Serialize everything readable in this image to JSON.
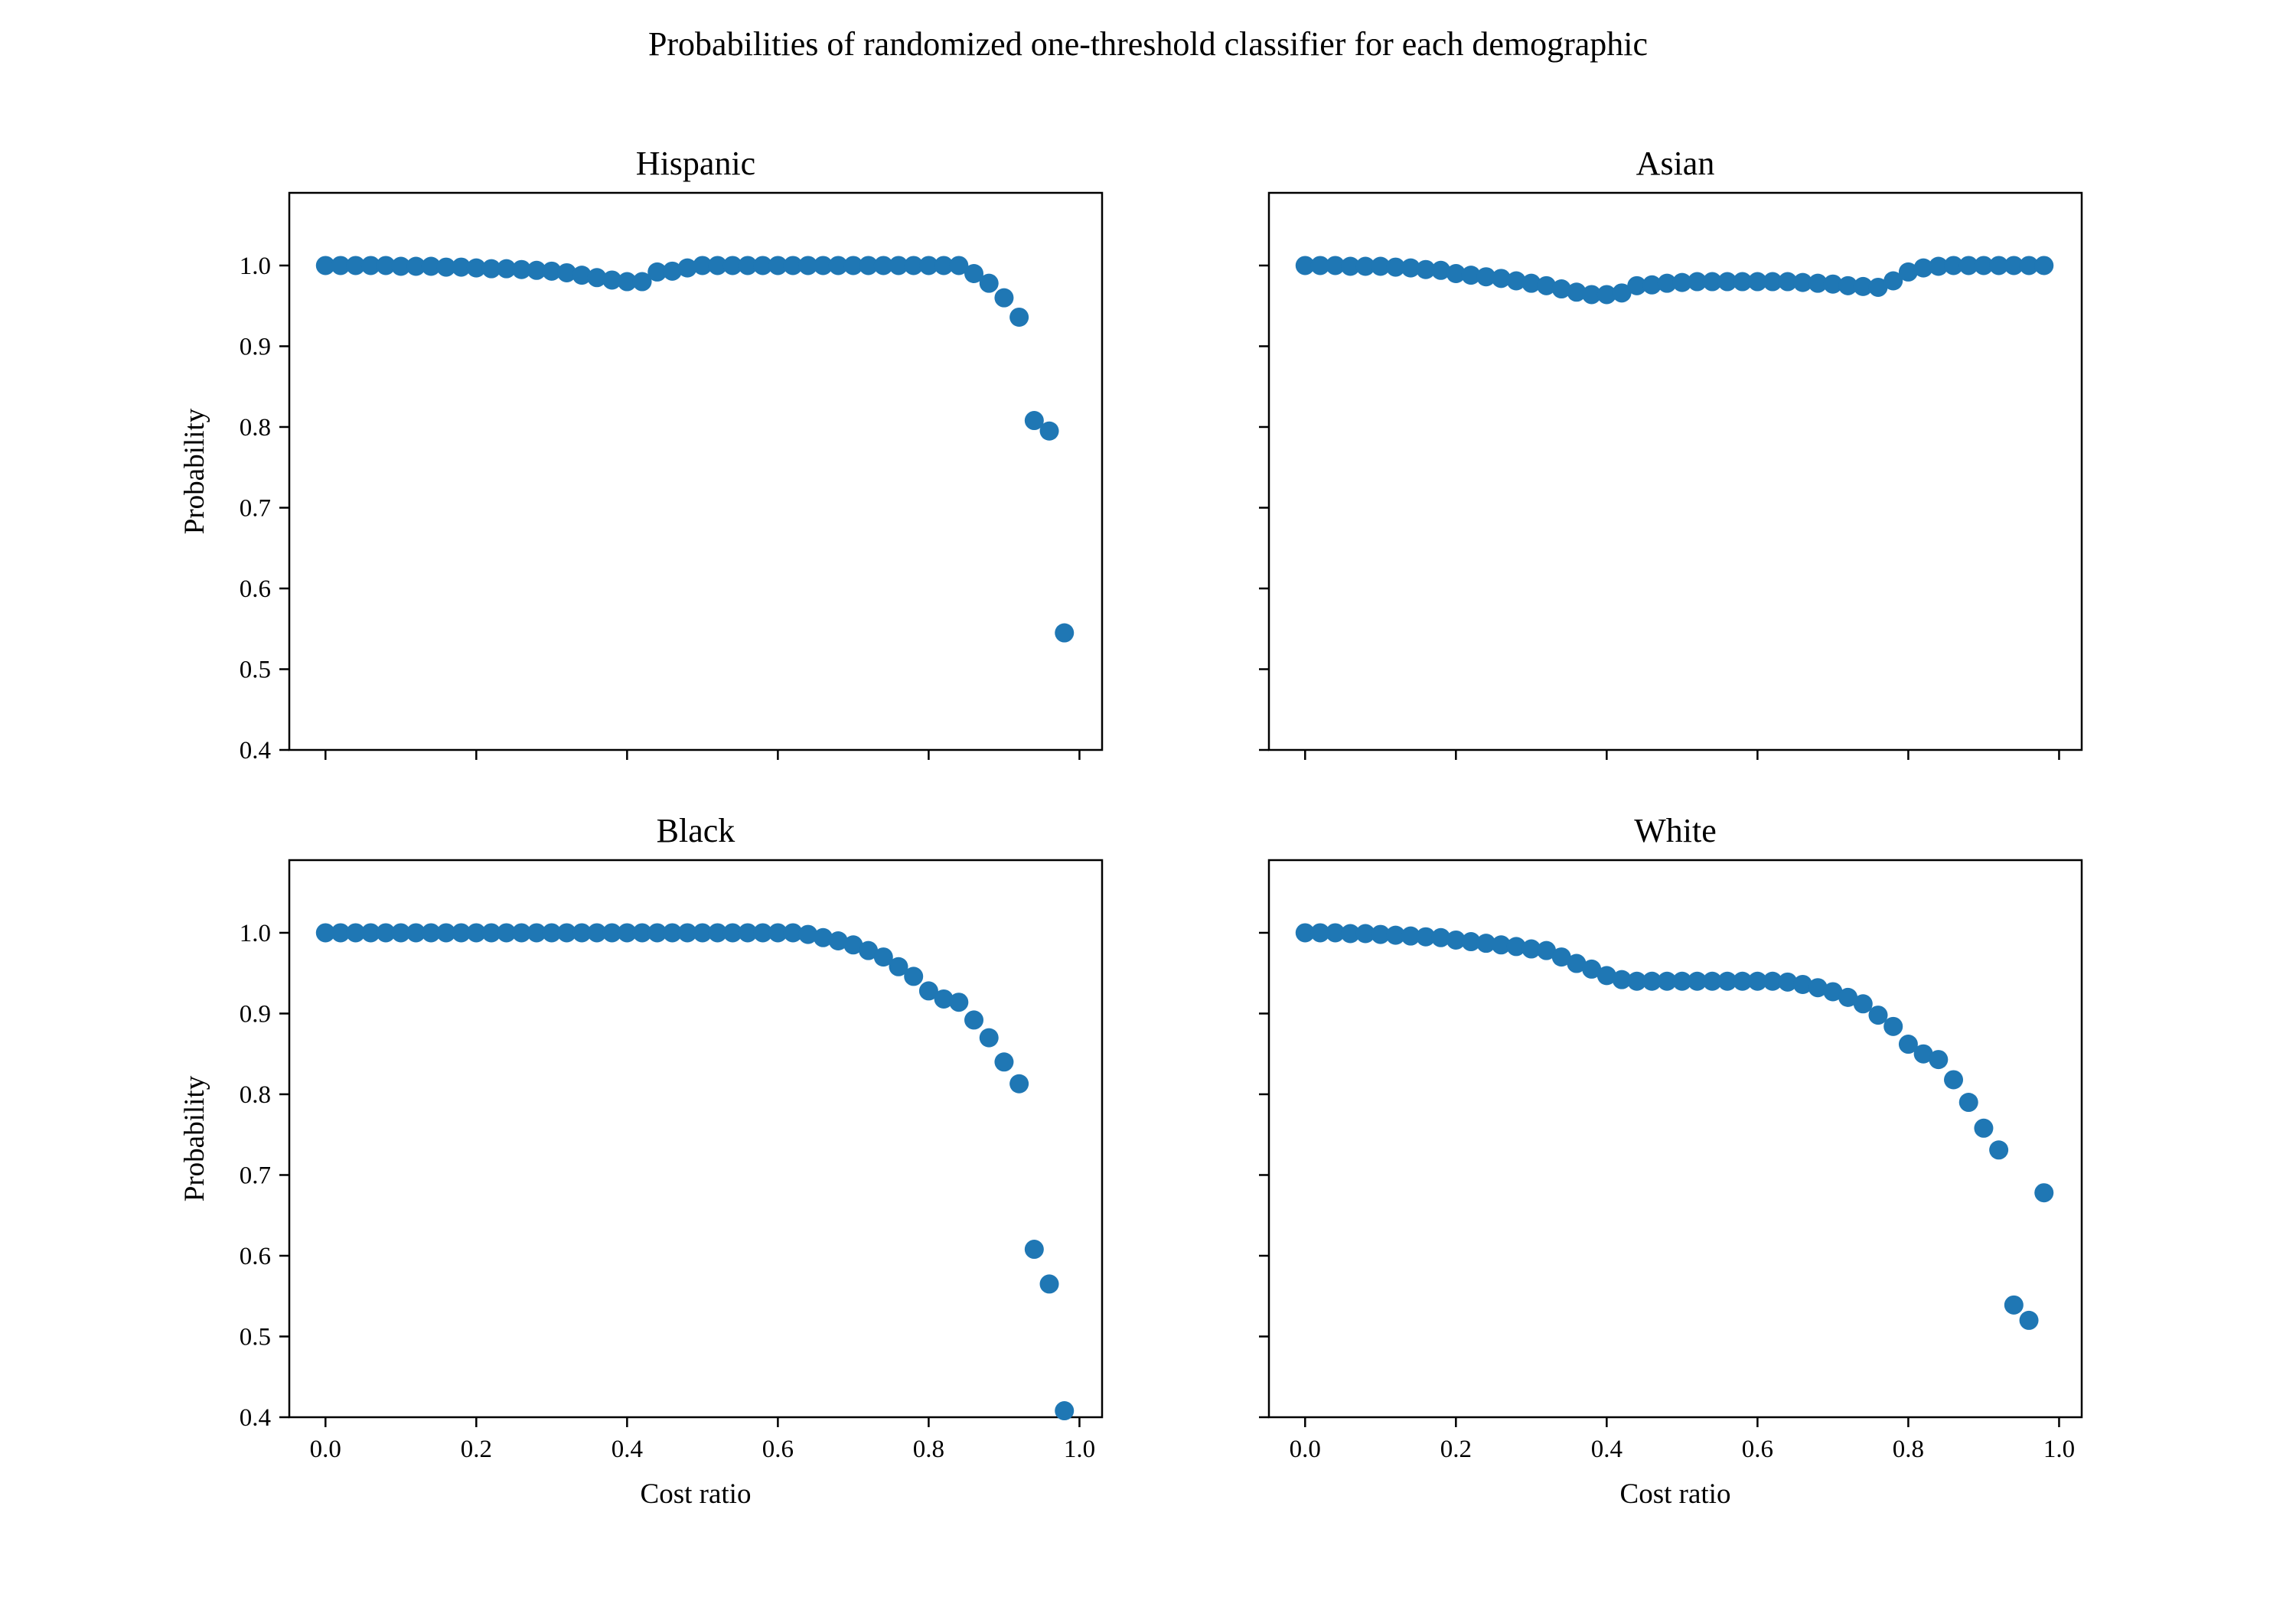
{
  "figure": {
    "title": "Probabilities of randomized one-threshold classifier for each demographic"
  },
  "chart_data": [
    {
      "type": "scatter",
      "title": "Hispanic",
      "xlabel": "",
      "ylabel": "Probability",
      "xlim": [
        -0.048,
        1.03
      ],
      "ylim": [
        0.4,
        1.09
      ],
      "xticks": [
        "0.0",
        "0.2",
        "0.4",
        "0.6",
        "0.8",
        "1.0"
      ],
      "yticks": [
        "0.4",
        "0.5",
        "0.6",
        "0.7",
        "0.8",
        "0.9",
        "1.0"
      ],
      "show_xtick_labels": false,
      "show_ytick_labels": true,
      "color": "#1f77b4",
      "x": [
        0.0,
        0.02,
        0.04,
        0.06,
        0.08,
        0.1,
        0.12,
        0.14,
        0.16,
        0.18,
        0.2,
        0.22,
        0.24,
        0.26,
        0.28,
        0.3,
        0.32,
        0.34,
        0.36,
        0.38,
        0.4,
        0.42,
        0.44,
        0.46,
        0.48,
        0.5,
        0.52,
        0.54,
        0.56,
        0.58,
        0.6,
        0.62,
        0.64,
        0.66,
        0.68,
        0.7,
        0.72,
        0.74,
        0.76,
        0.78,
        0.8,
        0.82,
        0.84,
        0.86,
        0.88,
        0.9,
        0.92,
        0.94,
        0.96,
        0.98
      ],
      "y": [
        1.0,
        1.0,
        1.0,
        1.0,
        1.0,
        0.999,
        0.999,
        0.999,
        0.998,
        0.998,
        0.997,
        0.996,
        0.996,
        0.995,
        0.994,
        0.993,
        0.991,
        0.988,
        0.985,
        0.982,
        0.98,
        0.98,
        0.992,
        0.993,
        0.997,
        1.0,
        1.0,
        1.0,
        1.0,
        1.0,
        1.0,
        1.0,
        1.0,
        1.0,
        1.0,
        1.0,
        1.0,
        1.0,
        1.0,
        1.0,
        1.0,
        1.0,
        1.0,
        0.99,
        0.978,
        0.96,
        0.936,
        0.808,
        0.795,
        0.545
      ]
    },
    {
      "type": "scatter",
      "title": "Asian",
      "xlabel": "",
      "ylabel": "",
      "xlim": [
        -0.048,
        1.03
      ],
      "ylim": [
        0.4,
        1.09
      ],
      "xticks": [
        "0.0",
        "0.2",
        "0.4",
        "0.6",
        "0.8",
        "1.0"
      ],
      "yticks": [
        "0.4",
        "0.5",
        "0.6",
        "0.7",
        "0.8",
        "0.9",
        "1.0"
      ],
      "show_xtick_labels": false,
      "show_ytick_labels": false,
      "color": "#1f77b4",
      "x": [
        0.0,
        0.02,
        0.04,
        0.06,
        0.08,
        0.1,
        0.12,
        0.14,
        0.16,
        0.18,
        0.2,
        0.22,
        0.24,
        0.26,
        0.28,
        0.3,
        0.32,
        0.34,
        0.36,
        0.38,
        0.4,
        0.42,
        0.44,
        0.46,
        0.48,
        0.5,
        0.52,
        0.54,
        0.56,
        0.58,
        0.6,
        0.62,
        0.64,
        0.66,
        0.68,
        0.7,
        0.72,
        0.74,
        0.76,
        0.78,
        0.8,
        0.82,
        0.84,
        0.86,
        0.88,
        0.9,
        0.92,
        0.94,
        0.96,
        0.98
      ],
      "y": [
        1.0,
        1.0,
        1.0,
        0.999,
        0.999,
        0.999,
        0.998,
        0.997,
        0.995,
        0.994,
        0.99,
        0.988,
        0.986,
        0.984,
        0.981,
        0.978,
        0.975,
        0.971,
        0.967,
        0.964,
        0.964,
        0.966,
        0.975,
        0.976,
        0.978,
        0.979,
        0.98,
        0.98,
        0.98,
        0.98,
        0.98,
        0.98,
        0.98,
        0.979,
        0.978,
        0.977,
        0.975,
        0.974,
        0.973,
        0.981,
        0.992,
        0.997,
        0.999,
        1.0,
        1.0,
        1.0,
        1.0,
        1.0,
        1.0,
        1.0
      ]
    },
    {
      "type": "scatter",
      "title": "Black",
      "xlabel": "Cost ratio",
      "ylabel": "Probability",
      "xlim": [
        -0.048,
        1.03
      ],
      "ylim": [
        0.4,
        1.09
      ],
      "xticks": [
        "0.0",
        "0.2",
        "0.4",
        "0.6",
        "0.8",
        "1.0"
      ],
      "yticks": [
        "0.4",
        "0.5",
        "0.6",
        "0.7",
        "0.8",
        "0.9",
        "1.0"
      ],
      "show_xtick_labels": true,
      "show_ytick_labels": true,
      "color": "#1f77b4",
      "x": [
        0.0,
        0.02,
        0.04,
        0.06,
        0.08,
        0.1,
        0.12,
        0.14,
        0.16,
        0.18,
        0.2,
        0.22,
        0.24,
        0.26,
        0.28,
        0.3,
        0.32,
        0.34,
        0.36,
        0.38,
        0.4,
        0.42,
        0.44,
        0.46,
        0.48,
        0.5,
        0.52,
        0.54,
        0.56,
        0.58,
        0.6,
        0.62,
        0.64,
        0.66,
        0.68,
        0.7,
        0.72,
        0.74,
        0.76,
        0.78,
        0.8,
        0.82,
        0.84,
        0.86,
        0.88,
        0.9,
        0.92,
        0.94,
        0.96,
        0.98
      ],
      "y": [
        1.0,
        1.0,
        1.0,
        1.0,
        1.0,
        1.0,
        1.0,
        1.0,
        1.0,
        1.0,
        1.0,
        1.0,
        1.0,
        1.0,
        1.0,
        1.0,
        1.0,
        1.0,
        1.0,
        1.0,
        1.0,
        1.0,
        1.0,
        1.0,
        1.0,
        1.0,
        1.0,
        1.0,
        1.0,
        1.0,
        1.0,
        1.0,
        0.998,
        0.994,
        0.99,
        0.985,
        0.978,
        0.97,
        0.958,
        0.946,
        0.928,
        0.918,
        0.914,
        0.892,
        0.87,
        0.84,
        0.813,
        0.608,
        0.565,
        0.408
      ]
    },
    {
      "type": "scatter",
      "title": "White",
      "xlabel": "Cost ratio",
      "ylabel": "",
      "xlim": [
        -0.048,
        1.03
      ],
      "ylim": [
        0.4,
        1.09
      ],
      "xticks": [
        "0.0",
        "0.2",
        "0.4",
        "0.6",
        "0.8",
        "1.0"
      ],
      "yticks": [
        "0.4",
        "0.5",
        "0.6",
        "0.7",
        "0.8",
        "0.9",
        "1.0"
      ],
      "show_xtick_labels": true,
      "show_ytick_labels": false,
      "color": "#1f77b4",
      "x": [
        0.0,
        0.02,
        0.04,
        0.06,
        0.08,
        0.1,
        0.12,
        0.14,
        0.16,
        0.18,
        0.2,
        0.22,
        0.24,
        0.26,
        0.28,
        0.3,
        0.32,
        0.34,
        0.36,
        0.38,
        0.4,
        0.42,
        0.44,
        0.46,
        0.48,
        0.5,
        0.52,
        0.54,
        0.56,
        0.58,
        0.6,
        0.62,
        0.64,
        0.66,
        0.68,
        0.7,
        0.72,
        0.74,
        0.76,
        0.78,
        0.8,
        0.82,
        0.84,
        0.86,
        0.88,
        0.9,
        0.92,
        0.94,
        0.96,
        0.98
      ],
      "y": [
        1.0,
        1.0,
        1.0,
        0.999,
        0.999,
        0.998,
        0.997,
        0.996,
        0.995,
        0.994,
        0.991,
        0.989,
        0.987,
        0.985,
        0.983,
        0.98,
        0.978,
        0.97,
        0.962,
        0.955,
        0.947,
        0.942,
        0.94,
        0.94,
        0.94,
        0.94,
        0.94,
        0.94,
        0.94,
        0.94,
        0.94,
        0.94,
        0.939,
        0.936,
        0.932,
        0.927,
        0.92,
        0.912,
        0.898,
        0.884,
        0.862,
        0.85,
        0.843,
        0.818,
        0.79,
        0.758,
        0.731,
        0.539,
        0.52,
        0.678
      ]
    }
  ]
}
